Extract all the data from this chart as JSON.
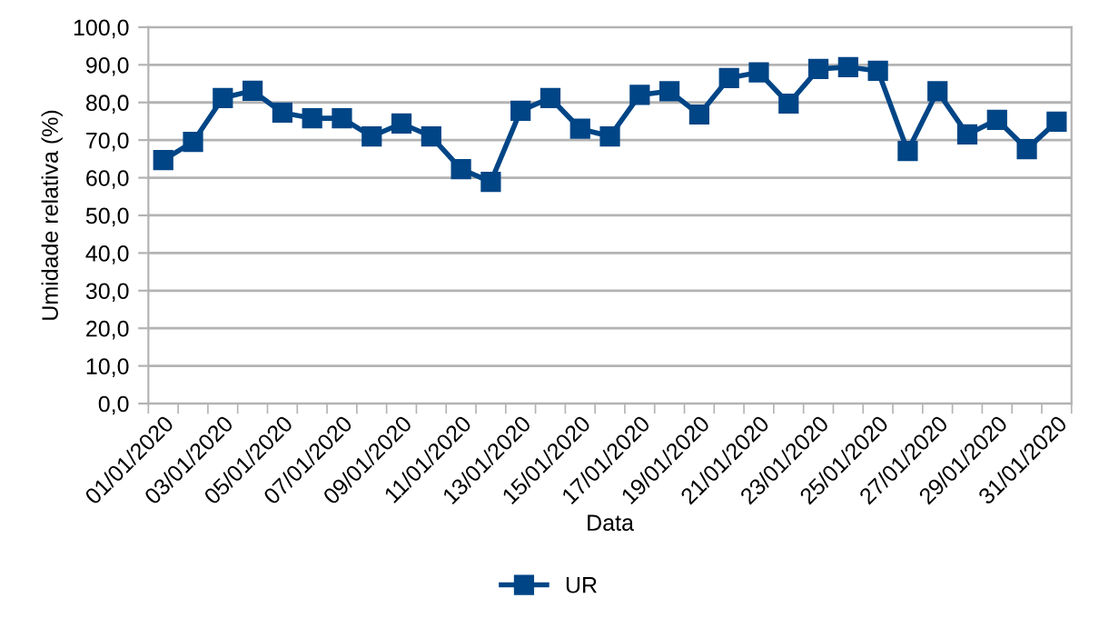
{
  "chart_data": {
    "type": "line",
    "xlabel": "Data",
    "ylabel": "Umidade relativa (%)",
    "categories": [
      "01/01/2020",
      null,
      "03/01/2020",
      null,
      "05/01/2020",
      null,
      "07/01/2020",
      null,
      "09/01/2020",
      null,
      "11/01/2020",
      null,
      "13/01/2020",
      null,
      "15/01/2020",
      null,
      "17/01/2020",
      null,
      "19/01/2020",
      null,
      "21/01/2020",
      null,
      "23/01/2020",
      null,
      "25/01/2020",
      null,
      "27/01/2020",
      null,
      "29/01/2020",
      null,
      "31/01/2020"
    ],
    "series": [
      {
        "name": "UR",
        "color": "#004586",
        "values": [
          64.7,
          69.5,
          81.2,
          83.1,
          77.3,
          75.8,
          75.8,
          71.0,
          74.4,
          71.0,
          62.3,
          58.9,
          77.8,
          81.2,
          73.0,
          71.0,
          82.0,
          83.0,
          76.8,
          86.5,
          88.0,
          79.7,
          88.9,
          89.4,
          88.4,
          67.1,
          83.0,
          71.5,
          75.4,
          67.6,
          74.9
        ]
      }
    ],
    "ylim": [
      0,
      100
    ],
    "yticks": [
      {
        "value": 0,
        "label": "0,0"
      },
      {
        "value": 10,
        "label": "10,0"
      },
      {
        "value": 20,
        "label": "20,0"
      },
      {
        "value": 30,
        "label": "30,0"
      },
      {
        "value": 40,
        "label": "40,0"
      },
      {
        "value": 50,
        "label": "50,0"
      },
      {
        "value": 60,
        "label": "60,0"
      },
      {
        "value": 70,
        "label": "70,0"
      },
      {
        "value": 80,
        "label": "80,0"
      },
      {
        "value": 90,
        "label": "90,0"
      },
      {
        "value": 100,
        "label": "100,0"
      }
    ],
    "grid": "y",
    "legend": "bottom",
    "marker": "square",
    "line_style": "solid"
  }
}
